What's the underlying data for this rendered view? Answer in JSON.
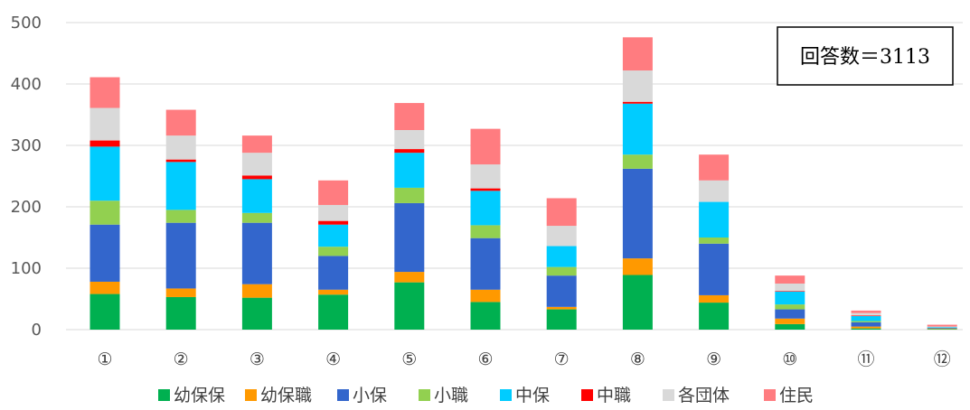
{
  "chart_data": {
    "type": "bar",
    "stacked": true,
    "categories": [
      "①",
      "②",
      "③",
      "④",
      "⑤",
      "⑥",
      "⑦",
      "⑧",
      "⑨",
      "⑩",
      "⑪",
      "⑫"
    ],
    "ylim": [
      0,
      500
    ],
    "yticks": [
      0,
      100,
      200,
      300,
      400,
      500
    ],
    "grid": true,
    "legend_position": "bottom",
    "annotation": "回答数＝3113",
    "series": [
      {
        "name": "幼保保",
        "color": "#00b050",
        "values": [
          58,
          53,
          52,
          57,
          77,
          45,
          33,
          89,
          44,
          9,
          2,
          1
        ]
      },
      {
        "name": "幼保職",
        "color": "#ff9900",
        "values": [
          20,
          14,
          22,
          8,
          17,
          20,
          4,
          27,
          12,
          9,
          3,
          1
        ]
      },
      {
        "name": "小保",
        "color": "#3366cc",
        "values": [
          93,
          107,
          100,
          55,
          112,
          84,
          51,
          146,
          84,
          15,
          7,
          1
        ]
      },
      {
        "name": "小職",
        "color": "#92d050",
        "values": [
          39,
          21,
          16,
          15,
          25,
          21,
          14,
          23,
          10,
          8,
          2,
          0
        ]
      },
      {
        "name": "中保",
        "color": "#00ccff",
        "values": [
          88,
          78,
          55,
          36,
          57,
          56,
          34,
          83,
          58,
          21,
          8,
          1
        ]
      },
      {
        "name": "中職",
        "color": "#ff0000",
        "values": [
          10,
          4,
          6,
          6,
          6,
          4,
          0,
          3,
          0,
          1,
          1,
          0
        ]
      },
      {
        "name": "各団体",
        "color": "#d9d9d9",
        "values": [
          53,
          39,
          37,
          26,
          31,
          39,
          33,
          51,
          35,
          12,
          4,
          1
        ]
      },
      {
        "name": "住民",
        "color": "#ff7c80",
        "values": [
          50,
          42,
          28,
          40,
          44,
          58,
          45,
          54,
          42,
          13,
          4,
          3
        ]
      }
    ]
  }
}
